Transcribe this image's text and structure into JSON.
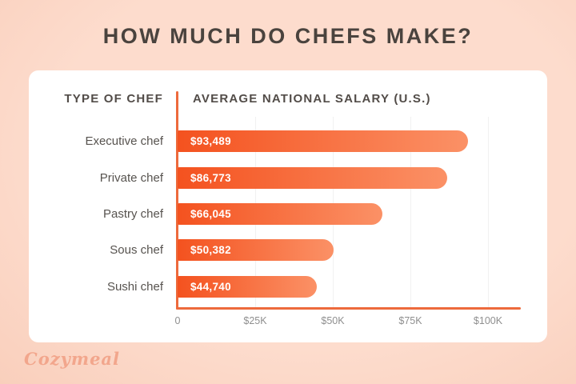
{
  "title": "HOW MUCH DO CHEFS MAKE?",
  "table": {
    "col1_header": "TYPE OF CHEF",
    "col2_header": "AVERAGE NATIONAL SALARY (U.S.)"
  },
  "chart_data": {
    "type": "bar",
    "orientation": "horizontal",
    "title": "HOW MUCH DO CHEFS MAKE?",
    "categories": [
      "Executive chef",
      "Private chef",
      "Pastry chef",
      "Sous chef",
      "Sushi chef"
    ],
    "values": [
      93489,
      86773,
      66045,
      50382,
      44740
    ],
    "value_labels": [
      "$93,489",
      "$86,773",
      "$66,045",
      "$50,382",
      "$44,740"
    ],
    "x_ticks": [
      "0",
      "$25K",
      "$50K",
      "$75K",
      "$100K"
    ],
    "xlim": [
      0,
      100000
    ],
    "xlabel": "",
    "ylabel": "",
    "grid": true,
    "legend": "none"
  },
  "watermark": "Cozymeal",
  "colors": {
    "background": "#fcd9c8",
    "card": "#ffffff",
    "bar_gradient_start": "#f4521f",
    "bar_gradient_end": "#fb9166",
    "axis": "#ed6a3c",
    "title_text": "#4a433e",
    "watermark": "#f2a68c"
  }
}
